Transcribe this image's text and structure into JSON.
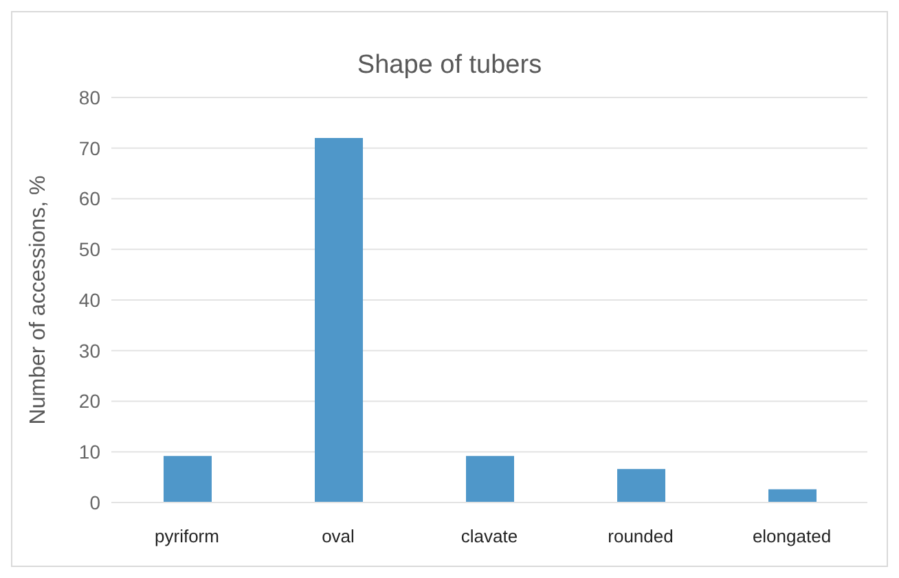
{
  "chart_data": {
    "type": "bar",
    "title": "Shape of tubers",
    "ylabel": "Number of accessions, %",
    "categories": [
      "pyriform",
      "oval",
      "clavate",
      "rounded",
      "elongated"
    ],
    "values": [
      9.2,
      72,
      9.2,
      6.6,
      2.6
    ],
    "color": "#4f97c9",
    "ylim": [
      0,
      80
    ],
    "yticks": [
      0,
      10,
      20,
      30,
      40,
      50,
      60,
      70,
      80
    ],
    "grid": "y"
  }
}
